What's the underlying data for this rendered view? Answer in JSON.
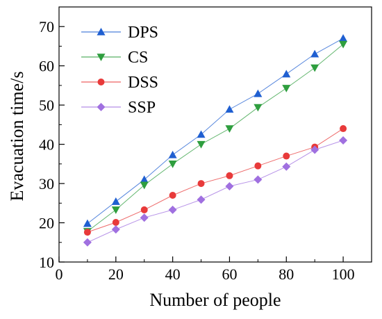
{
  "chart_data": {
    "type": "line",
    "title": "",
    "xlabel": "Number of people",
    "ylabel": "Evacuation time/s",
    "xlim": [
      0,
      110
    ],
    "ylim": [
      10,
      75
    ],
    "x_ticks": [
      0,
      20,
      40,
      60,
      80,
      100
    ],
    "y_ticks": [
      10,
      20,
      30,
      40,
      50,
      60,
      70
    ],
    "x_tick_labels": [
      "0",
      "20",
      "40",
      "60",
      "80",
      "100"
    ],
    "y_tick_labels": [
      "10",
      "20",
      "30",
      "40",
      "50",
      "60",
      "70"
    ],
    "grid": false,
    "legend_position": "top-left",
    "x": [
      10,
      20,
      30,
      40,
      50,
      60,
      70,
      80,
      90,
      100
    ],
    "series": [
      {
        "name": "DPS",
        "color": "#1f5fd1",
        "marker": "triangle-up",
        "values": [
          19.8,
          25.4,
          31.0,
          37.3,
          42.5,
          48.9,
          52.9,
          57.9,
          63.0,
          67.0
        ]
      },
      {
        "name": "CS",
        "color": "#2e9e3e",
        "marker": "triangle-down",
        "values": [
          17.8,
          23.3,
          29.6,
          35.0,
          40.0,
          44.0,
          49.4,
          54.3,
          59.5,
          65.5
        ]
      },
      {
        "name": "DSS",
        "color": "#e83a3a",
        "marker": "circle",
        "values": [
          17.6,
          20.1,
          23.3,
          27.0,
          30.0,
          32.0,
          34.5,
          37.0,
          39.3,
          44.0
        ]
      },
      {
        "name": "SSP",
        "color": "#a070e0",
        "marker": "diamond",
        "values": [
          15.0,
          18.3,
          21.3,
          23.3,
          25.9,
          29.3,
          31.0,
          34.3,
          38.6,
          41.0
        ]
      }
    ]
  }
}
